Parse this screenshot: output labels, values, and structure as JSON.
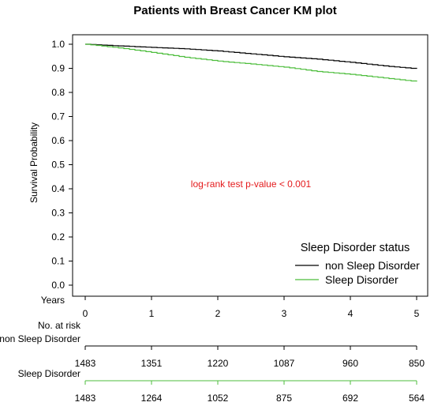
{
  "chart_data": {
    "type": "line",
    "title": "Patients with Breast Cancer KM plot",
    "ylabel": "Survival Probability",
    "xlabel": "Years",
    "xlim": [
      0,
      5
    ],
    "ylim": [
      0,
      1
    ],
    "x_ticks": [
      0,
      1,
      2,
      3,
      4,
      5
    ],
    "y_ticks": [
      "0.0",
      "0.1",
      "0.2",
      "0.3",
      "0.4",
      "0.5",
      "0.6",
      "0.7",
      "0.8",
      "0.9",
      "1.0"
    ],
    "legend": {
      "title": "Sleep Disorder status",
      "position": "bottom-right"
    },
    "annotation": {
      "text": "log-rank test p-value < 0.001",
      "color": "#e41a1c"
    },
    "series": [
      {
        "name": "non Sleep Disorder",
        "color": "#000000",
        "x": [
          0,
          0.5,
          1,
          1.5,
          2,
          2.5,
          3,
          3.5,
          4,
          4.5,
          5
        ],
        "y": [
          1.0,
          0.993,
          0.987,
          0.981,
          0.972,
          0.96,
          0.948,
          0.938,
          0.925,
          0.91,
          0.898
        ]
      },
      {
        "name": "Sleep Disorder",
        "color": "#4dbd3c",
        "x": [
          0,
          0.5,
          1,
          1.5,
          2,
          2.5,
          3,
          3.5,
          4,
          4.5,
          5
        ],
        "y": [
          1.0,
          0.985,
          0.966,
          0.946,
          0.93,
          0.918,
          0.905,
          0.887,
          0.875,
          0.86,
          0.845
        ]
      }
    ],
    "risk_table": {
      "title": "No. at risk",
      "rows": [
        {
          "name": "non Sleep Disorder",
          "color": "#000000",
          "values": [
            1483,
            1351,
            1220,
            1087,
            960,
            850
          ]
        },
        {
          "name": "Sleep Disorder",
          "color": "#4dbd3c",
          "values": [
            1483,
            1264,
            1052,
            875,
            692,
            564
          ]
        }
      ]
    }
  }
}
